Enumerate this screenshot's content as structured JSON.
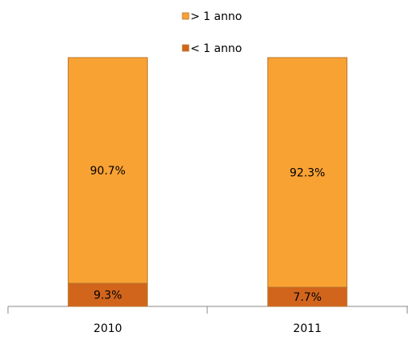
{
  "chart_data": {
    "type": "stacked-bar",
    "categories": [
      "2010",
      "2011"
    ],
    "series": [
      {
        "name": "< 1 anno",
        "color": "#d2651c",
        "values": [
          9.3,
          7.7
        ],
        "value_labels": [
          "9.3%",
          "7.7%"
        ]
      },
      {
        "name": "> 1 anno",
        "color": "#f9a234",
        "values": [
          90.7,
          92.3
        ],
        "value_labels": [
          "90.7%",
          "92.3%"
        ]
      }
    ],
    "ylim": [
      0,
      100
    ],
    "legend": "top"
  }
}
